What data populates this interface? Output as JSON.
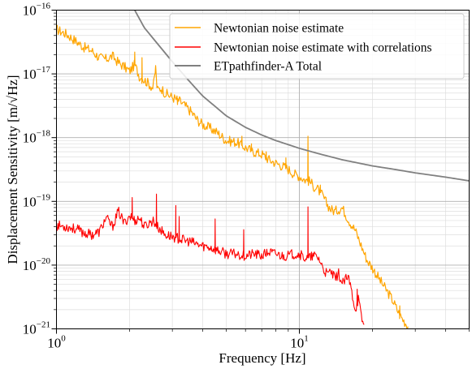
{
  "chart_data": {
    "type": "line",
    "xlabel": "Frequency [Hz]",
    "ylabel": "Displacement Sensitivity [m/√Hz]",
    "x_scale": "log",
    "y_scale": "log",
    "xlim": [
      1,
      50
    ],
    "ylim": [
      1e-21,
      1e-16
    ],
    "grid": true,
    "legend_position": "top-right",
    "x_ticks": [
      {
        "base": "10",
        "exp": "0",
        "value": 1
      },
      {
        "base": "10",
        "exp": "1",
        "value": 10
      }
    ],
    "y_ticks": [
      {
        "base": "10",
        "exp": "−21",
        "value": 1e-21
      },
      {
        "base": "10",
        "exp": "−20",
        "value": 1e-20
      },
      {
        "base": "10",
        "exp": "−19",
        "value": 1e-19
      },
      {
        "base": "10",
        "exp": "−18",
        "value": 1e-18
      },
      {
        "base": "10",
        "exp": "−17",
        "value": 1e-17
      },
      {
        "base": "10",
        "exp": "−16",
        "value": 1e-16
      }
    ],
    "series": [
      {
        "name": "Newtonian noise estimate",
        "color": "#ffa500",
        "x": [
          1.0,
          1.1,
          1.2,
          1.3,
          1.4,
          1.5,
          1.6,
          1.7,
          1.8,
          1.9,
          2.0,
          2.1,
          2.2,
          2.3,
          2.4,
          2.5,
          2.56,
          2.6,
          2.7,
          2.8,
          3.0,
          3.2,
          3.4,
          3.6,
          3.8,
          4.0,
          4.3,
          4.6,
          5.0,
          5.5,
          6.0,
          6.5,
          7.0,
          7.5,
          8.0,
          8.5,
          9.0,
          9.5,
          10.0,
          10.5,
          10.9,
          11.1,
          11.5,
          12.0,
          12.5,
          13.0,
          13.5,
          14.0,
          15.0,
          16.0,
          17.0,
          18.0,
          19.0,
          20.0,
          22.0,
          24.0,
          26.0,
          28.0
        ],
        "y": [
          5e-17,
          4.2e-17,
          3.3e-17,
          2.6e-17,
          2.3e-17,
          1.8e-17,
          1.7e-17,
          1.9e-17,
          1.5e-17,
          1.3e-17,
          1.1e-17,
          1.4e-17,
          9e-18,
          8e-18,
          7e-18,
          6e-18,
          1.2e-17,
          5.5e-18,
          6e-18,
          5e-18,
          4.3e-18,
          3.8e-18,
          3.1e-18,
          2.5e-18,
          1.9e-18,
          1.6e-18,
          1.4e-18,
          1.2e-18,
          9e-19,
          8.5e-19,
          7e-19,
          6e-19,
          5.5e-19,
          4.5e-19,
          4e-19,
          3.6e-19,
          3.2e-19,
          2.7e-19,
          2.5e-19,
          2.2e-19,
          2.1e-19,
          2e-19,
          1.7e-19,
          1.5e-19,
          1.2e-19,
          9e-20,
          7.5e-20,
          7e-20,
          8e-20,
          5e-20,
          3.5e-20,
          2e-20,
          1.2e-20,
          9e-21,
          5e-21,
          3e-21,
          1.6e-21,
          1.1e-21
        ]
      },
      {
        "name": "Newtonian noise estimate with correlations",
        "color": "#ff0000",
        "x": [
          1.0,
          1.1,
          1.2,
          1.3,
          1.4,
          1.5,
          1.6,
          1.7,
          1.8,
          1.9,
          2.0,
          2.1,
          2.2,
          2.3,
          2.4,
          2.5,
          2.6,
          2.7,
          2.8,
          3.0,
          3.2,
          3.4,
          3.6,
          3.8,
          4.0,
          4.3,
          4.6,
          5.0,
          5.5,
          6.0,
          6.5,
          7.0,
          7.5,
          8.0,
          8.5,
          9.0,
          9.5,
          10.0,
          10.5,
          11.0,
          11.5,
          12.0,
          12.5,
          13.0,
          13.5,
          14.0,
          14.5,
          15.0,
          15.5,
          16.0,
          16.5,
          17.0,
          17.5,
          18.0,
          18.5
        ],
        "y": [
          4.2e-20,
          4e-20,
          3.7e-20,
          3.2e-20,
          3e-20,
          3.3e-20,
          5.5e-20,
          4e-20,
          7e-20,
          4.5e-20,
          6e-20,
          5e-20,
          5.5e-20,
          4e-20,
          4.5e-20,
          5e-20,
          4e-20,
          3.5e-20,
          3e-20,
          2.8e-20,
          2.6e-20,
          2.4e-20,
          2.3e-20,
          2.1e-20,
          2e-20,
          1.9e-20,
          1.7e-20,
          1.5e-20,
          1.5e-20,
          1.4e-20,
          1.5e-20,
          1.4e-20,
          1.6e-20,
          1.5e-20,
          1.4e-20,
          1.4e-20,
          1.5e-20,
          1.5e-20,
          1.3e-20,
          1.3e-20,
          1.4e-20,
          1.3e-20,
          9e-21,
          7e-21,
          8e-21,
          6e-21,
          7.5e-21,
          5e-21,
          6e-21,
          6e-21,
          3.5e-21,
          2e-21,
          3e-21,
          1.5e-21,
          1.1e-21
        ]
      },
      {
        "name": "ETpathfinder-A Total",
        "color": "#808080",
        "x": [
          2.1,
          2.3,
          2.5,
          3.0,
          3.5,
          4.0,
          5.0,
          6.0,
          7.0,
          8.0,
          10.0,
          12.0,
          15.0,
          20.0,
          25.0,
          30.0,
          40.0,
          50.0
        ],
        "y": [
          1e-16,
          5.3e-17,
          3.6e-17,
          1.55e-17,
          7.9e-18,
          4.5e-18,
          2.2e-18,
          1.45e-18,
          1.1e-18,
          9e-19,
          6.8e-19,
          5.6e-19,
          4.5e-19,
          3.6e-19,
          3.15e-19,
          2.8e-19,
          2.4e-19,
          2.1e-19
        ]
      }
    ],
    "spikes": {
      "series": "Newtonian noise estimate",
      "items": [
        {
          "x": 2.1,
          "y": 2.2e-17
        },
        {
          "x": 2.25,
          "y": 1.8e-17
        },
        {
          "x": 2.56,
          "y": 1.35e-17
        },
        {
          "x": 3.15,
          "y": 3.3e-18
        },
        {
          "x": 4.5,
          "y": 1.3e-18
        },
        {
          "x": 5.8,
          "y": 1.05e-18
        },
        {
          "x": 6.35,
          "y": 8e-19
        },
        {
          "x": 7.3,
          "y": 6e-19
        },
        {
          "x": 8.8,
          "y": 4.8e-19
        },
        {
          "x": 10.85,
          "y": 1.05e-18
        },
        {
          "x": 12.2,
          "y": 1.8e-19
        },
        {
          "x": 25.9,
          "y": 2.3e-21
        }
      ]
    },
    "spikes_corr": {
      "series": "Newtonian noise estimate with correlations",
      "items": [
        {
          "x": 2.05,
          "y": 1.15e-19
        },
        {
          "x": 2.58,
          "y": 1.3e-19
        },
        {
          "x": 3.1,
          "y": 8.6e-20
        },
        {
          "x": 3.2,
          "y": 5.8e-20
        },
        {
          "x": 4.5,
          "y": 5.3e-20
        },
        {
          "x": 5.9,
          "y": 3.6e-20
        },
        {
          "x": 10.85,
          "y": 8.2e-20
        },
        {
          "x": 17.3,
          "y": 4.2e-21
        }
      ]
    }
  }
}
